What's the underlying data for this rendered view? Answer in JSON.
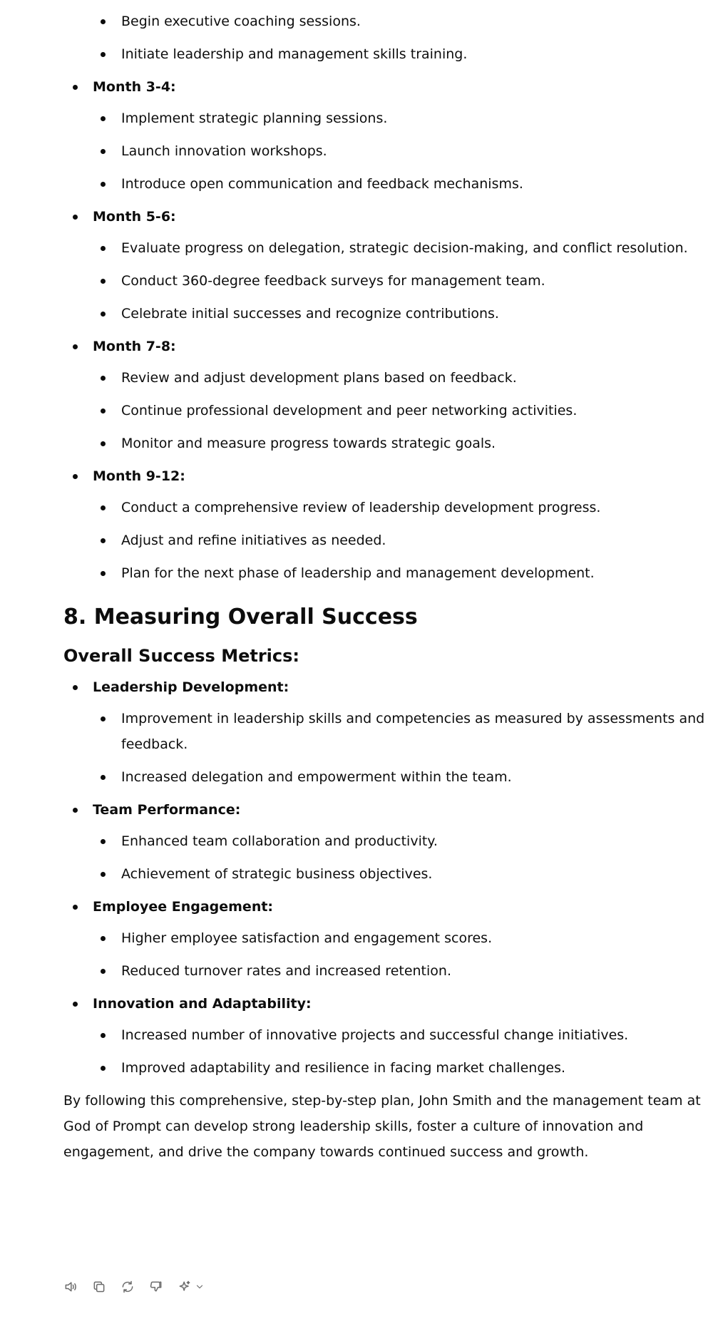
{
  "top_list": {
    "items": [
      "Begin executive coaching sessions.",
      "Initiate leadership and management skills training."
    ]
  },
  "timeline": [
    {
      "label": "Month 3-4:",
      "items": [
        "Implement strategic planning sessions.",
        "Launch innovation workshops.",
        "Introduce open communication and feedback mechanisms."
      ]
    },
    {
      "label": "Month 5-6:",
      "items": [
        "Evaluate progress on delegation, strategic decision-making, and conflict resolution.",
        "Conduct 360-degree feedback surveys for management team.",
        "Celebrate initial successes and recognize contributions."
      ]
    },
    {
      "label": "Month 7-8:",
      "items": [
        "Review and adjust development plans based on feedback.",
        "Continue professional development and peer networking activities.",
        "Monitor and measure progress towards strategic goals."
      ]
    },
    {
      "label": "Month 9-12:",
      "items": [
        "Conduct a comprehensive review of leadership development progress.",
        "Adjust and refine initiatives as needed.",
        "Plan for the next phase of leadership and management development."
      ]
    }
  ],
  "section8": {
    "title": "8. Measuring Overall Success",
    "subtitle": "Overall Success Metrics:",
    "metrics": [
      {
        "label": "Leadership Development:",
        "items": [
          "Improvement in leadership skills and competencies as measured by assessments and feedback.",
          "Increased delegation and empowerment within the team."
        ]
      },
      {
        "label": "Team Performance:",
        "items": [
          "Enhanced team collaboration and productivity.",
          "Achievement of strategic business objectives."
        ]
      },
      {
        "label": "Employee Engagement:",
        "items": [
          "Higher employee satisfaction and engagement scores.",
          "Reduced turnover rates and increased retention."
        ]
      },
      {
        "label": "Innovation and Adaptability:",
        "items": [
          "Increased number of innovative projects and successful change initiatives.",
          "Improved adaptability and resilience in facing market challenges."
        ]
      }
    ],
    "closing": "By following this comprehensive, step-by-step plan, John Smith and the management team at God of Prompt can develop strong leadership skills, foster a culture of innovation and engagement, and drive the company towards continued success and growth."
  },
  "toolbar": {
    "icons": [
      "read-aloud-icon",
      "copy-icon",
      "regenerate-icon",
      "thumbs-down-icon",
      "sparkle-model-icon",
      "chevron-down-icon"
    ]
  }
}
